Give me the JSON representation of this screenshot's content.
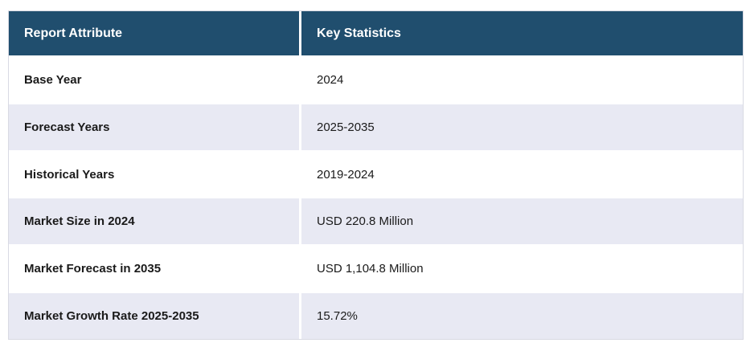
{
  "chart_data": {
    "type": "table",
    "columns": [
      "Report Attribute",
      "Key Statistics"
    ],
    "rows": [
      [
        "Base Year",
        "2024"
      ],
      [
        "Forecast Years",
        "2025-2035"
      ],
      [
        "Historical Years",
        "2019-2024"
      ],
      [
        "Market Size in 2024",
        "USD 220.8 Million"
      ],
      [
        "Market Forecast in 2035",
        "USD 1,104.8 Million"
      ],
      [
        "Market Growth Rate 2025-2035",
        "15.72%"
      ]
    ],
    "layout": {
      "header_position": "top",
      "alternating_rows": true,
      "grid": "white cell gaps, light outer border"
    }
  },
  "colors": {
    "header_bg": "#204E6E",
    "header_text": "#FFFFFF",
    "row_bg": "#FFFFFF",
    "alt_row_bg": "#E8E9F3",
    "body_text": "#1A1A1A",
    "outer_border": "#D9DAE3"
  }
}
